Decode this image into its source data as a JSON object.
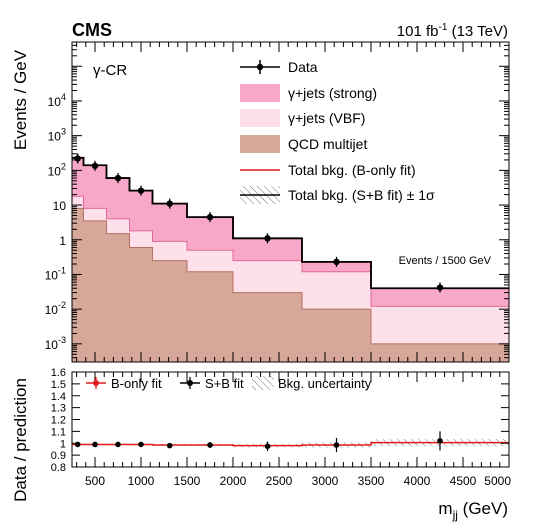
{
  "header": {
    "experiment": "CMS",
    "lumi_value": "101 fb",
    "lumi_exp": "-1",
    "energy": " (13 TeV)",
    "region": "γ-CR"
  },
  "colors": {
    "strong": "#f7a8c8",
    "vbf": "#fde0e9",
    "qcd": "#d6a89a",
    "qcd_line": "#b5705f",
    "strong_line": "#e3679a",
    "bonly": "#e31a1c",
    "data": "#000000"
  },
  "chart_data": [
    {
      "type": "bar",
      "panel": "main",
      "ylabel": "Events / GeV",
      "yscale": "log",
      "ylim": [
        0.0003,
        500000
      ],
      "xlim": [
        250,
        5000
      ],
      "y_ticks": [
        {
          "value": 0.001,
          "base": "10",
          "exp": "-3"
        },
        {
          "value": 0.01,
          "base": "10",
          "exp": "-2"
        },
        {
          "value": 0.1,
          "base": "10",
          "exp": "-1"
        },
        {
          "value": 1,
          "base": "1",
          "exp": ""
        },
        {
          "value": 10,
          "base": "10",
          "exp": ""
        },
        {
          "value": 100,
          "base": "10",
          "exp": "2"
        },
        {
          "value": 1000,
          "base": "10",
          "exp": "3"
        },
        {
          "value": 10000,
          "base": "10",
          "exp": "4"
        }
      ],
      "bin_edges": [
        250,
        375,
        625,
        875,
        1125,
        1500,
        2000,
        2750,
        3500,
        5000
      ],
      "stack": [
        {
          "name": "QCD multijet",
          "values": [
            8,
            3.5,
            1.5,
            0.6,
            0.25,
            0.12,
            0.03,
            0.01,
            0.001
          ]
        },
        {
          "name": "γ+jets (VBF)",
          "values": [
            18,
            8,
            4,
            1.8,
            0.9,
            0.5,
            0.25,
            0.12,
            0.012
          ]
        },
        {
          "name": "γ+jets (strong)",
          "values": [
            230,
            140,
            60,
            26,
            11,
            4.5,
            1.1,
            0.23,
            0.04
          ]
        }
      ],
      "data_points": {
        "name": "Data",
        "x": [
          312,
          500,
          750,
          1000,
          1312,
          1750,
          2375,
          3125,
          4250
        ],
        "y": [
          220,
          135,
          60,
          26,
          11,
          4.5,
          1.1,
          0.23,
          0.042
        ]
      },
      "legend": [
        {
          "key": "data",
          "label": "Data"
        },
        {
          "key": "strong",
          "label": "γ+jets (strong)"
        },
        {
          "key": "vbf",
          "label": "γ+jets (VBF)"
        },
        {
          "key": "qcd",
          "label": "QCD multijet"
        },
        {
          "key": "bonly",
          "label": "Total bkg. (B-only fit)"
        },
        {
          "key": "sb",
          "label": "Total bkg. (S+B fit) ± 1σ"
        }
      ],
      "annotation": "Events / 1500 GeV"
    },
    {
      "type": "scatter",
      "panel": "ratio",
      "ylabel": "Data / prediction",
      "xlabel": "m",
      "xlabel_sub": "jj",
      "xlabel_unit": " (GeV)",
      "ylim": [
        0.8,
        1.6
      ],
      "y_ticks": [
        "0.8",
        "0.9",
        "1",
        "1.1",
        "1.2",
        "1.3",
        "1.4",
        "1.5",
        "1.6"
      ],
      "xlim": [
        250,
        5000
      ],
      "x_ticks": [
        "500",
        "1000",
        "1500",
        "2000",
        "2500",
        "3000",
        "3500",
        "4000",
        "4500",
        "5000"
      ],
      "bin_edges": [
        250,
        375,
        625,
        875,
        1125,
        1500,
        2000,
        2750,
        3500,
        5000
      ],
      "uncertainty": [
        0.004,
        0.004,
        0.005,
        0.006,
        0.008,
        0.01,
        0.015,
        0.022,
        0.03
      ],
      "bonly_line": [
        0.99,
        0.99,
        0.99,
        0.99,
        0.985,
        0.985,
        0.98,
        0.985,
        1.005
      ],
      "series": [
        {
          "name": "S+B fit",
          "x": [
            312,
            500,
            750,
            1000,
            1312,
            1750,
            2375,
            3125,
            4250
          ],
          "y": [
            0.99,
            0.99,
            0.99,
            0.99,
            0.98,
            0.985,
            0.975,
            0.985,
            1.02
          ],
          "yerr": [
            0.01,
            0.01,
            0.012,
            0.015,
            0.02,
            0.025,
            0.04,
            0.06,
            0.08
          ]
        }
      ],
      "legend": [
        {
          "key": "bonly",
          "label": "B-only fit"
        },
        {
          "key": "sb",
          "label": "S+B fit"
        },
        {
          "key": "unc",
          "label": "Bkg. uncertainty"
        }
      ]
    }
  ]
}
